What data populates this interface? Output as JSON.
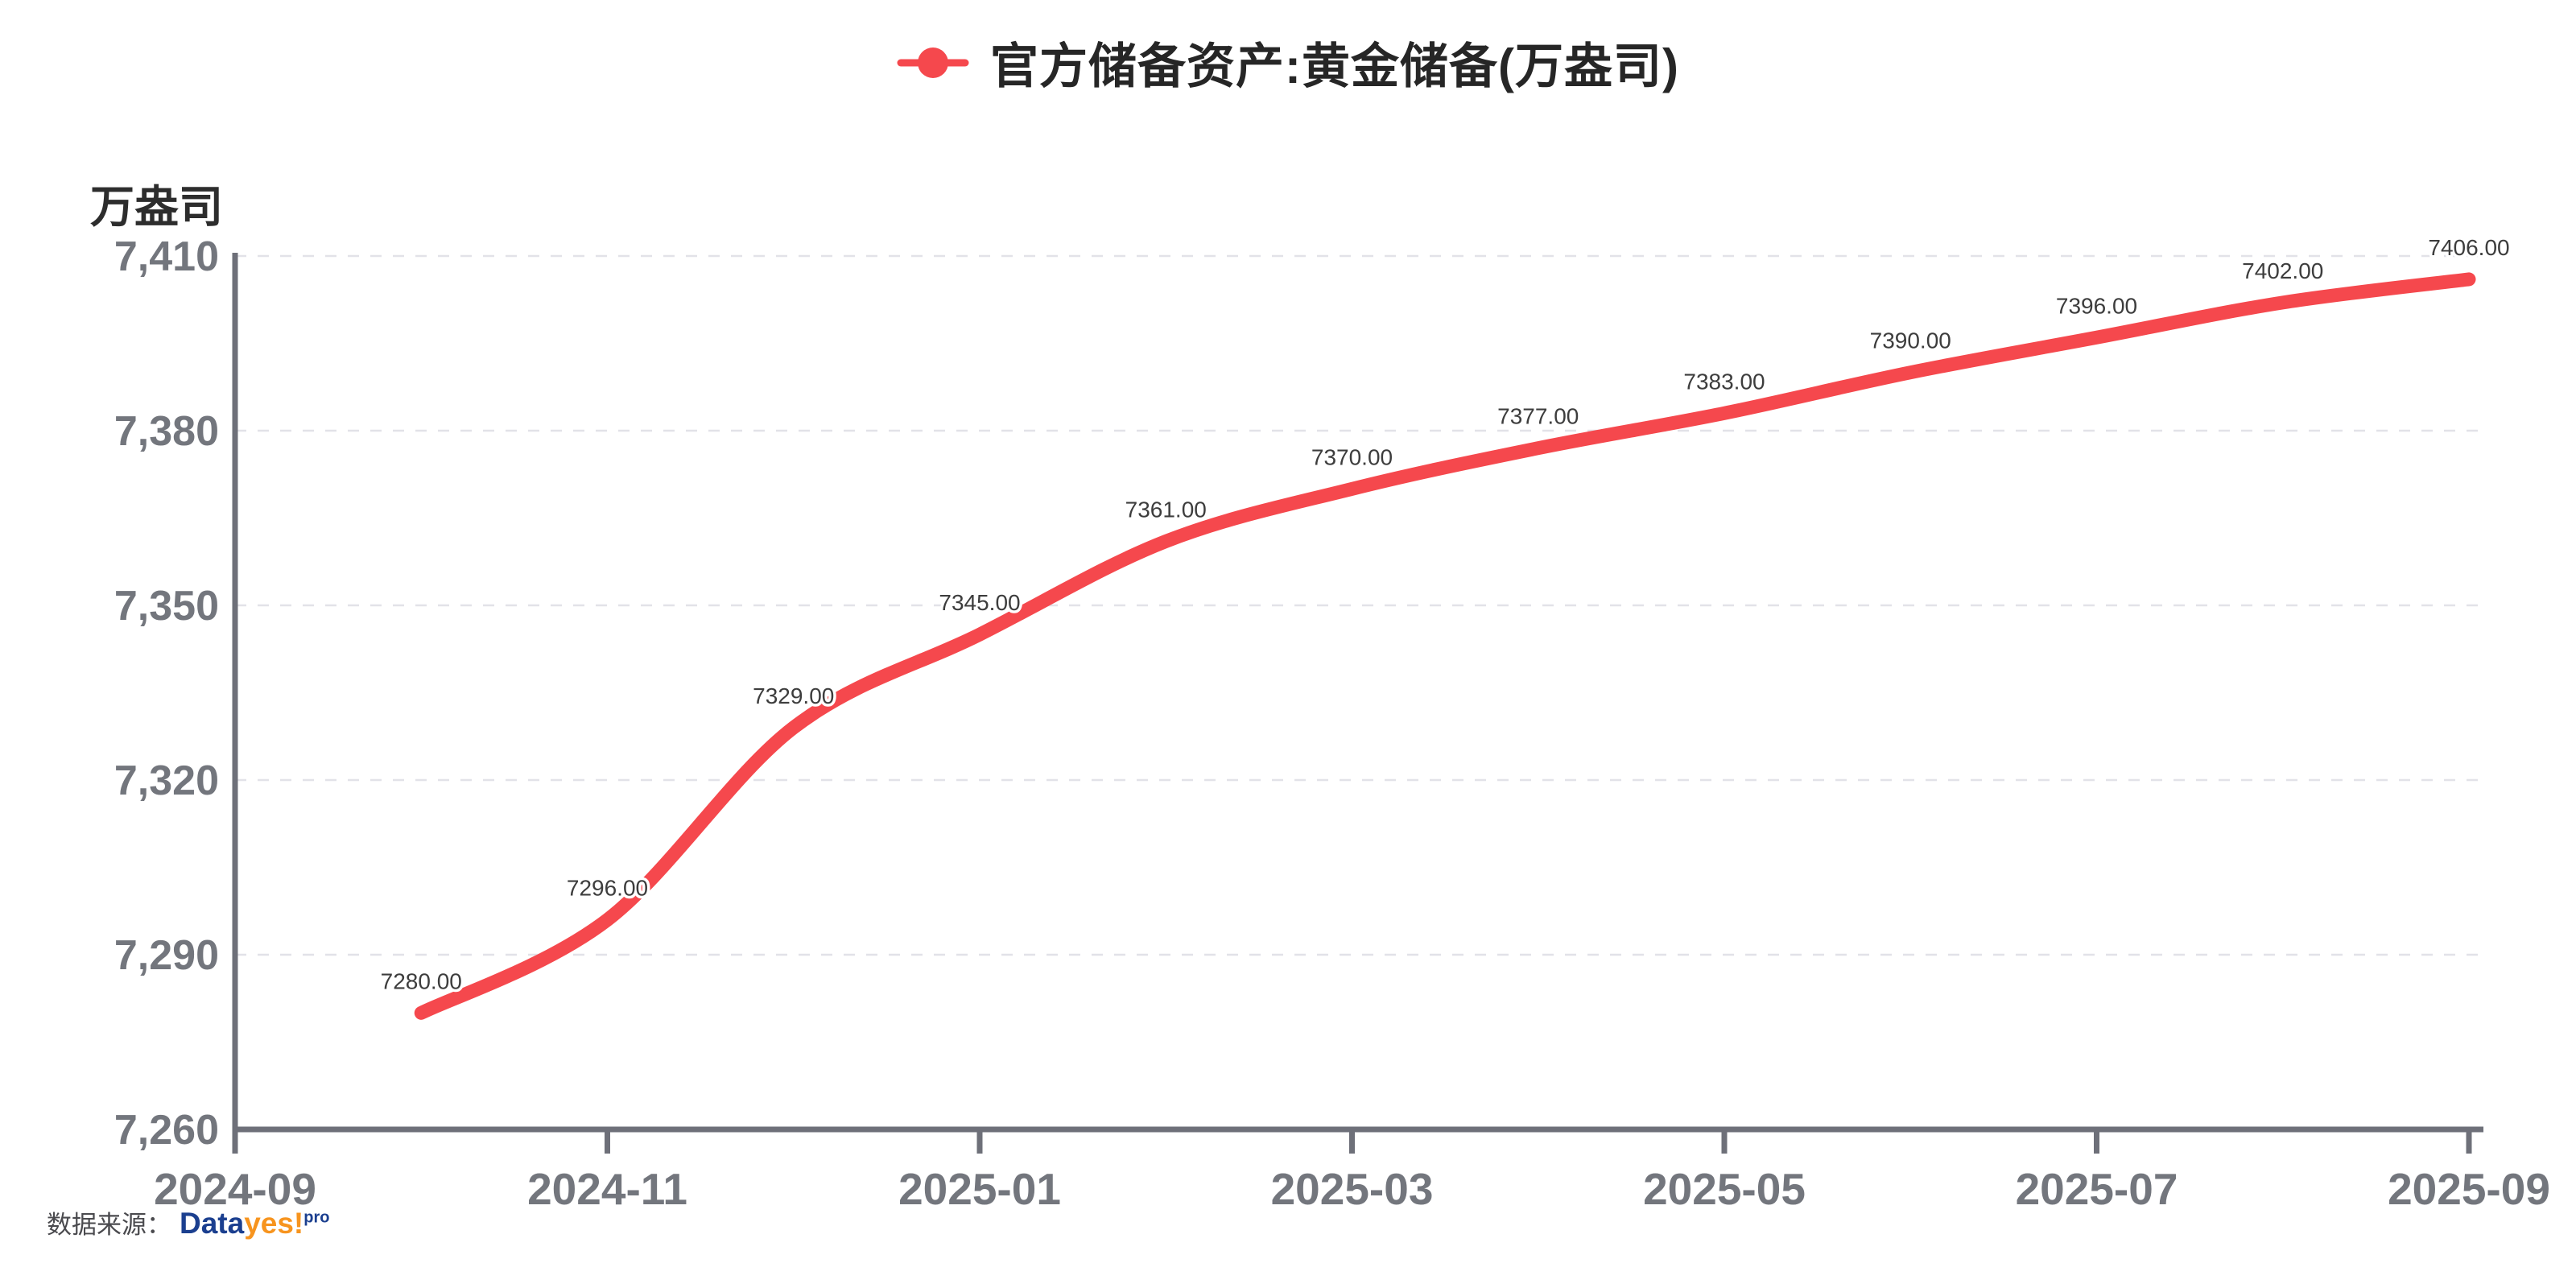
{
  "title": "官方储备资产:黄金储备(万盎司)",
  "legend": {
    "marker": "red-line-dot",
    "label": "官方储备资产:黄金储备(万盎司)"
  },
  "source": {
    "prefix": "数据来源：",
    "logo_part1": "Data",
    "logo_part2": "yes!",
    "logo_sup": "pro"
  },
  "colors": {
    "line": "#f5484d",
    "axis": "#6e7079",
    "tick_text": "#73767d",
    "grid": "#e2e2e8",
    "title_text": "#262626",
    "data_label": "#3d3d3d",
    "unit_label": "#2d2d2d",
    "source_text": "#4a4a4e",
    "logo_blue": "#1b3f8f",
    "logo_orange": "#f7941e"
  },
  "chart_data": {
    "type": "line",
    "title": "官方储备资产:黄金储备(万盎司)",
    "series_name": "官方储备资产:黄金储备(万盎司)",
    "xlabel": "",
    "ylabel": "万盎司",
    "x": [
      "2024-10",
      "2024-11",
      "2024-12",
      "2025-01",
      "2025-02",
      "2025-03",
      "2025-04",
      "2025-05",
      "2025-06",
      "2025-07",
      "2025-08",
      "2025-09"
    ],
    "values": [
      7280,
      7296,
      7329,
      7345,
      7361,
      7370,
      7377,
      7383,
      7390,
      7396,
      7402,
      7406
    ],
    "point_labels": [
      "7280.00",
      "7296.00",
      "7329.00",
      "7345.00",
      "7361.00",
      "7370.00",
      "7377.00",
      "7383.00",
      "7390.00",
      "7396.00",
      "7402.00",
      "7406.00"
    ],
    "ylim": [
      7260,
      7410
    ],
    "yticks": [
      7260,
      7290,
      7320,
      7350,
      7380,
      7410
    ],
    "ytick_labels": [
      "7,260",
      "7,290",
      "7,320",
      "7,350",
      "7,380",
      "7,410"
    ],
    "xaxis_start": "2024-09",
    "xaxis_end": "2025-09",
    "xtick_labels": [
      "2024-09",
      "2024-11",
      "2025-01",
      "2025-03",
      "2025-05",
      "2025-07",
      "2025-09"
    ],
    "xtick_month_offsets": [
      0,
      2,
      4,
      6,
      8,
      10,
      12
    ],
    "point_month_offsets": [
      1,
      2,
      3,
      4,
      5,
      6,
      7,
      8,
      9,
      10,
      11,
      12
    ],
    "grid": "dashed-horizontal",
    "legend_position": "top-center",
    "smooth": true,
    "line_color": "#f5484d"
  }
}
